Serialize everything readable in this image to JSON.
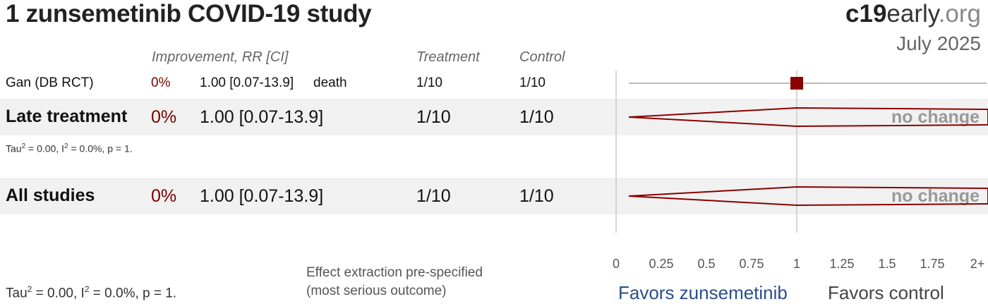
{
  "title": "1 zunsemetinib COVID-19 study",
  "brand": {
    "part1": "c19",
    "part2": "early",
    "part3": ".org"
  },
  "date": "July 2025",
  "headers": {
    "improvement": "Improvement, RR [CI]",
    "treatment": "Treatment",
    "control": "Control"
  },
  "studies": [
    {
      "name": "Gan (DB RCT)",
      "improvement": "0%",
      "rr_ci": "1.00 [0.07-13.9]",
      "outcome": "death",
      "treatment": "1/10",
      "control": "1/10"
    }
  ],
  "late": {
    "name": "Late treatment",
    "improvement": "0%",
    "rr_ci": "1.00 [0.07-13.9]",
    "treatment": "1/10",
    "control": "1/10",
    "verdict": "no change",
    "stats": {
      "tau_prefix": "Tau",
      "tau_sup": "2",
      "i_mid": " = 0.00, I",
      "i_sup": "2",
      "rest": " = 0.0%, p = 1."
    }
  },
  "all": {
    "name": "All studies",
    "improvement": "0%",
    "rr_ci": "1.00 [0.07-13.9]",
    "treatment": "1/10",
    "control": "1/10",
    "verdict": "no change"
  },
  "footer": {
    "stats": {
      "tau_prefix": "Tau",
      "tau_sup": "2",
      "i_mid": " = 0.00, I",
      "i_sup": "2",
      "rest": " = 0.0%, p = 1."
    },
    "note_line1": "Effect extraction pre-specified",
    "note_line2": "(most serious outcome)",
    "favors_left": "Favors zunsemetinib",
    "favors_right": "Favors control"
  },
  "chart_data": {
    "type": "forest",
    "x_ticks": [
      "0",
      "0.25",
      "0.5",
      "0.75",
      "1",
      "1.25",
      "1.5",
      "1.75",
      "2+"
    ],
    "xlim": [
      0,
      2
    ],
    "reference_line": 1,
    "colors": {
      "marker": "#8b0000",
      "diamond": "#8b0000",
      "ci_line": "#bbbbbb"
    },
    "rows": [
      {
        "label": "Gan (DB RCT)",
        "kind": "study",
        "rr": 1.0,
        "ci": [
          0.07,
          13.9
        ]
      },
      {
        "label": "Late treatment",
        "kind": "pooled",
        "rr": 1.0,
        "ci": [
          0.07,
          13.9
        ]
      },
      {
        "label": "All studies",
        "kind": "pooled",
        "rr": 1.0,
        "ci": [
          0.07,
          13.9
        ]
      }
    ]
  }
}
